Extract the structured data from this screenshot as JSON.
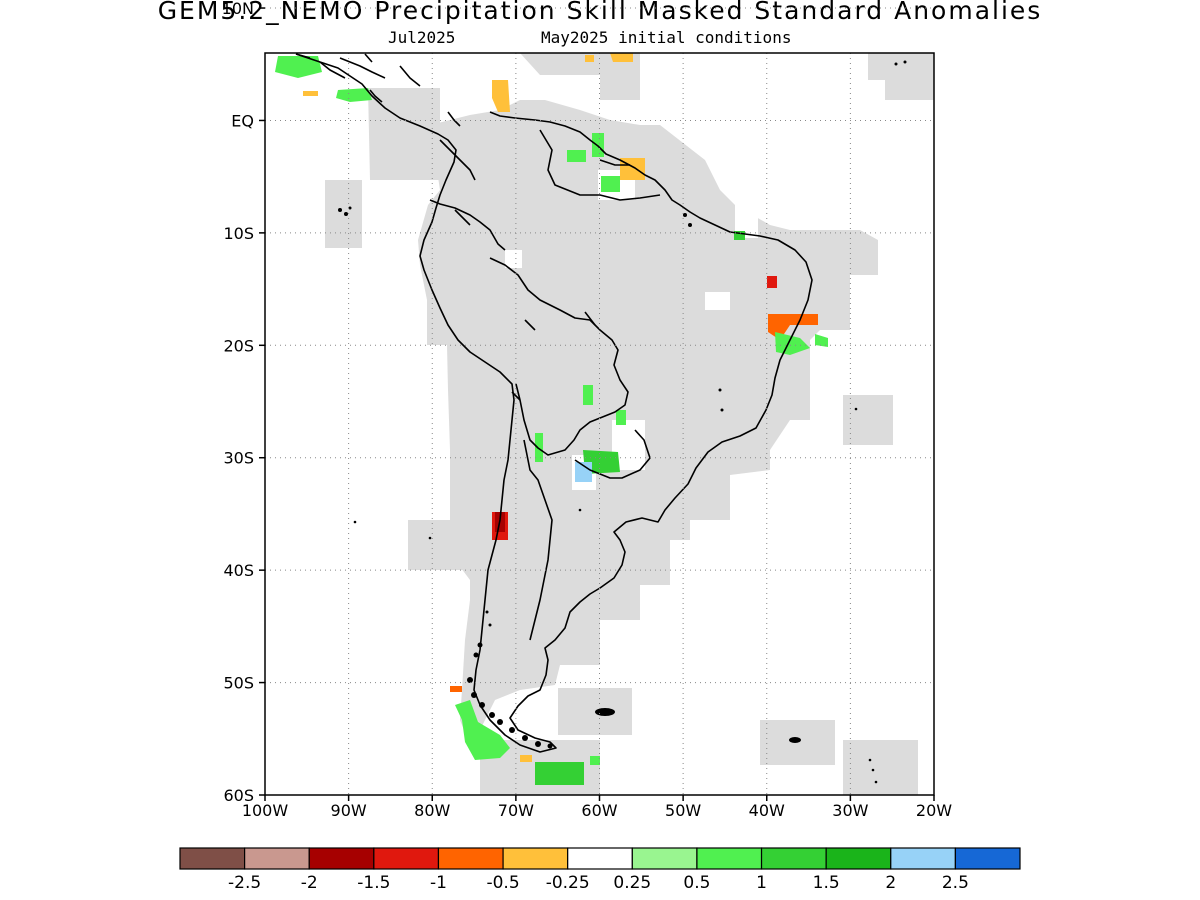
{
  "title": "GEM5.2_NEMO Precipitation Skill Masked Standard Anomalies",
  "subtitle_left": "Jul2025",
  "subtitle_right": "May2025 initial conditions",
  "map": {
    "lon_range": [
      -100,
      -20
    ],
    "lat_range": [
      -60,
      6
    ],
    "x_ticks": [
      "100W",
      "90W",
      "80W",
      "70W",
      "60W",
      "50W",
      "40W",
      "30W",
      "20W"
    ],
    "y_ticks": [
      "10N",
      "EQ",
      "10S",
      "20S",
      "30S",
      "40S",
      "50S",
      "60S"
    ],
    "grid": true,
    "mask_color": "#dcdcdc"
  },
  "colorbar": {
    "colors": [
      "#7f4f47",
      "#c9988f",
      "#a60000",
      "#e0180e",
      "#ff6400",
      "#ffc03a",
      "#ffffff",
      "#99f590",
      "#50f050",
      "#34d034",
      "#1ab41a",
      "#97d2f7",
      "#1668d6"
    ],
    "labels": [
      "-2.5",
      "-2",
      "-1.5",
      "-1",
      "-0.5",
      "-0.25",
      "0.25",
      "0.5",
      "1",
      "1.5",
      "2",
      "2.5"
    ]
  }
}
